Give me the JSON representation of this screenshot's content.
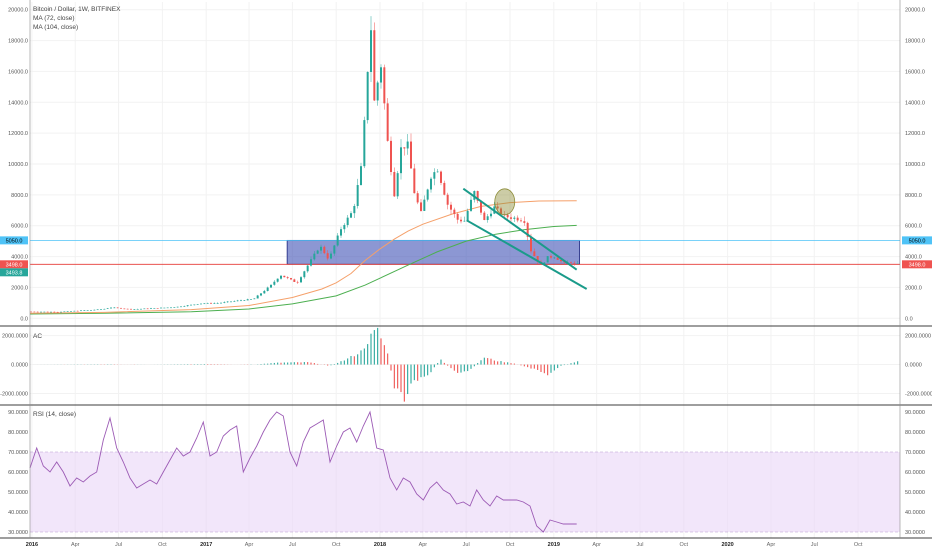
{
  "chart_data": {
    "type": "candlestick",
    "symbol_line": "Bitcoin / Dollar, 1W, BITFINEX",
    "indicators": [
      "MA (72, close)",
      "MA (104, close)"
    ],
    "colors": {
      "up": "#26a69a",
      "down": "#ef5350",
      "ma72": "#f5a06a",
      "ma104": "#4caf50",
      "box": "#3f51b5",
      "support": "#e53935",
      "resistance": "#4fc3f7",
      "channel": "#1a9b8a",
      "rsi": "#9c5bb5",
      "rsi_band": "#e9d6f7",
      "circle": "#8d8d3a"
    },
    "x_axis": {
      "ticks": [
        {
          "label": "2016",
          "date": "2016-01-01",
          "bold": true
        },
        {
          "label": "Apr",
          "date": "2016-04-01"
        },
        {
          "label": "Jul",
          "date": "2016-07-01"
        },
        {
          "label": "Oct",
          "date": "2016-10-01"
        },
        {
          "label": "2017",
          "date": "2017-01-01",
          "bold": true
        },
        {
          "label": "Apr",
          "date": "2017-04-01"
        },
        {
          "label": "Jul",
          "date": "2017-07-01"
        },
        {
          "label": "Oct",
          "date": "2017-10-01"
        },
        {
          "label": "2018",
          "date": "2018-01-01",
          "bold": true
        },
        {
          "label": "Apr",
          "date": "2018-04-01"
        },
        {
          "label": "Jul",
          "date": "2018-07-01"
        },
        {
          "label": "Oct",
          "date": "2018-10-01"
        },
        {
          "label": "2019",
          "date": "2019-01-01",
          "bold": true
        },
        {
          "label": "Apr",
          "date": "2019-04-01"
        },
        {
          "label": "Jul",
          "date": "2019-07-01"
        },
        {
          "label": "Oct",
          "date": "2019-10-01"
        },
        {
          "label": "2020",
          "date": "2020-01-01",
          "bold": true
        },
        {
          "label": "Apr",
          "date": "2020-04-01"
        },
        {
          "label": "Jul",
          "date": "2020-07-01"
        },
        {
          "label": "Oct",
          "date": "2020-10-01"
        }
      ]
    },
    "price_panel": {
      "ylim": [
        -500,
        20500
      ],
      "ticks": [
        "0.0",
        "2000.0",
        "4000.0",
        "6000.0",
        "8000.0",
        "10000.0",
        "12000.0",
        "14000.0",
        "16000.0",
        "18000.0",
        "20000.0"
      ],
      "tick_values": [
        0,
        2000,
        4000,
        6000,
        8000,
        10000,
        12000,
        14000,
        16000,
        18000,
        20000
      ],
      "markers": [
        {
          "label": "5050.0",
          "value": 5050,
          "side": "both",
          "color": "#4fc3f7"
        },
        {
          "label": "3498.0",
          "value": 3498,
          "side": "both",
          "color": "#ef5350"
        },
        {
          "label": "3493.8",
          "value": 3493.8,
          "side": "left",
          "color": "#26a69a"
        }
      ],
      "box": {
        "x0": "2017-06-20",
        "x1": "2019-02-24",
        "y0": 3500,
        "y1": 5050
      },
      "channel_upper": [
        {
          "date": "2018-06-25",
          "value": 8400
        },
        {
          "date": "2019-02-18",
          "value": 3150
        }
      ],
      "channel_lower": [
        {
          "date": "2018-07-02",
          "value": 6350
        },
        {
          "date": "2019-03-11",
          "value": 1900
        }
      ],
      "circle": {
        "date": "2018-09-20",
        "value": 7550
      },
      "ma72_pts": [
        {
          "date": "2015-12-28",
          "value": 320
        },
        {
          "date": "2016-06-01",
          "value": 380
        },
        {
          "date": "2016-12-01",
          "value": 560
        },
        {
          "date": "2017-04-01",
          "value": 830
        },
        {
          "date": "2017-07-01",
          "value": 1350
        },
        {
          "date": "2017-09-01",
          "value": 1900
        },
        {
          "date": "2017-10-01",
          "value": 2300
        },
        {
          "date": "2017-11-01",
          "value": 2900
        },
        {
          "date": "2017-12-01",
          "value": 3750
        },
        {
          "date": "2018-01-01",
          "value": 4500
        },
        {
          "date": "2018-02-01",
          "value": 5150
        },
        {
          "date": "2018-03-01",
          "value": 5650
        },
        {
          "date": "2018-04-01",
          "value": 6100
        },
        {
          "date": "2018-06-01",
          "value": 6750
        },
        {
          "date": "2018-08-01",
          "value": 7250
        },
        {
          "date": "2018-10-01",
          "value": 7500
        },
        {
          "date": "2018-12-01",
          "value": 7600
        },
        {
          "date": "2019-02-18",
          "value": 7620
        }
      ],
      "ma104_pts": [
        {
          "date": "2015-12-28",
          "value": 280
        },
        {
          "date": "2016-06-01",
          "value": 320
        },
        {
          "date": "2016-12-01",
          "value": 420
        },
        {
          "date": "2017-04-01",
          "value": 600
        },
        {
          "date": "2017-07-01",
          "value": 930
        },
        {
          "date": "2017-10-01",
          "value": 1450
        },
        {
          "date": "2017-12-01",
          "value": 2150
        },
        {
          "date": "2018-01-01",
          "value": 2600
        },
        {
          "date": "2018-03-01",
          "value": 3450
        },
        {
          "date": "2018-05-01",
          "value": 4300
        },
        {
          "date": "2018-07-01",
          "value": 5000
        },
        {
          "date": "2018-09-01",
          "value": 5450
        },
        {
          "date": "2018-11-01",
          "value": 5750
        },
        {
          "date": "2019-01-01",
          "value": 5950
        },
        {
          "date": "2019-02-18",
          "value": 6020
        }
      ],
      "price_pts": [
        {
          "date": "2015-12-28",
          "value": 430
        },
        {
          "date": "2016-03-01",
          "value": 415
        },
        {
          "date": "2016-06-01",
          "value": 580
        },
        {
          "date": "2016-06-20",
          "value": 700
        },
        {
          "date": "2016-08-01",
          "value": 580
        },
        {
          "date": "2016-11-01",
          "value": 720
        },
        {
          "date": "2016-12-26",
          "value": 960
        },
        {
          "date": "2017-02-01",
          "value": 990
        },
        {
          "date": "2017-03-01",
          "value": 1100
        },
        {
          "date": "2017-04-15",
          "value": 1250
        },
        {
          "date": "2017-05-20",
          "value": 2100
        },
        {
          "date": "2017-06-10",
          "value": 2800
        },
        {
          "date": "2017-07-15",
          "value": 2300
        },
        {
          "date": "2017-08-10",
          "value": 3600
        },
        {
          "date": "2017-09-01",
          "value": 4700
        },
        {
          "date": "2017-09-20",
          "value": 3800
        },
        {
          "date": "2017-10-15",
          "value": 5800
        },
        {
          "date": "2017-11-10",
          "value": 7000
        },
        {
          "date": "2017-11-28",
          "value": 10000
        },
        {
          "date": "2017-12-10",
          "value": 16000
        },
        {
          "date": "2017-12-17",
          "value": 19000
        },
        {
          "date": "2017-12-24",
          "value": 14000
        },
        {
          "date": "2018-01-07",
          "value": 16500
        },
        {
          "date": "2018-01-21",
          "value": 11500
        },
        {
          "date": "2018-02-04",
          "value": 8000
        },
        {
          "date": "2018-02-18",
          "value": 11000
        },
        {
          "date": "2018-03-04",
          "value": 11300
        },
        {
          "date": "2018-03-18",
          "value": 8200
        },
        {
          "date": "2018-04-01",
          "value": 6800
        },
        {
          "date": "2018-04-22",
          "value": 9200
        },
        {
          "date": "2018-05-06",
          "value": 9700
        },
        {
          "date": "2018-05-27",
          "value": 7400
        },
        {
          "date": "2018-06-17",
          "value": 6400
        },
        {
          "date": "2018-07-01",
          "value": 6300
        },
        {
          "date": "2018-07-22",
          "value": 8200
        },
        {
          "date": "2018-08-12",
          "value": 6300
        },
        {
          "date": "2018-09-02",
          "value": 7200
        },
        {
          "date": "2018-09-23",
          "value": 6600
        },
        {
          "date": "2018-10-14",
          "value": 6500
        },
        {
          "date": "2018-11-04",
          "value": 6350
        },
        {
          "date": "2018-11-18",
          "value": 4400
        },
        {
          "date": "2018-12-09",
          "value": 3400
        },
        {
          "date": "2018-12-23",
          "value": 3950
        },
        {
          "date": "2019-01-06",
          "value": 4000
        },
        {
          "date": "2019-01-27",
          "value": 3550
        },
        {
          "date": "2019-02-10",
          "value": 3650
        },
        {
          "date": "2019-02-18",
          "value": 3498
        }
      ]
    },
    "ac_panel": {
      "title": "AC",
      "ylim": [
        -2800,
        2600
      ],
      "ticks": [
        "2000.0000",
        "0.0000",
        "-2000.0000"
      ],
      "tick_values": [
        2000,
        0,
        -2000
      ],
      "pts": [
        {
          "date": "2015-12-28",
          "value": 0
        },
        {
          "date": "2016-06-15",
          "value": 20
        },
        {
          "date": "2016-08-01",
          "value": -10
        },
        {
          "date": "2017-01-01",
          "value": 40
        },
        {
          "date": "2017-04-01",
          "value": -20
        },
        {
          "date": "2017-06-01",
          "value": 130
        },
        {
          "date": "2017-08-01",
          "value": 160
        },
        {
          "date": "2017-09-15",
          "value": -80
        },
        {
          "date": "2017-10-20",
          "value": 350
        },
        {
          "date": "2017-11-20",
          "value": 900
        },
        {
          "date": "2017-12-10",
          "value": 1900
        },
        {
          "date": "2017-12-24",
          "value": 2400
        },
        {
          "date": "2018-01-14",
          "value": 900
        },
        {
          "date": "2018-01-28",
          "value": -1500
        },
        {
          "date": "2018-02-18",
          "value": -2400
        },
        {
          "date": "2018-03-11",
          "value": -1200
        },
        {
          "date": "2018-04-08",
          "value": -800
        },
        {
          "date": "2018-05-06",
          "value": 350
        },
        {
          "date": "2018-06-10",
          "value": -650
        },
        {
          "date": "2018-07-08",
          "value": -380
        },
        {
          "date": "2018-08-05",
          "value": 500
        },
        {
          "date": "2018-09-02",
          "value": 250
        },
        {
          "date": "2018-10-07",
          "value": 80
        },
        {
          "date": "2018-11-18",
          "value": -300
        },
        {
          "date": "2018-12-16",
          "value": -700
        },
        {
          "date": "2019-01-13",
          "value": -100
        },
        {
          "date": "2019-02-18",
          "value": 200
        }
      ]
    },
    "rsi_panel": {
      "title": "RSI (14, close)",
      "ylim": [
        27,
        93
      ],
      "band": [
        30,
        70
      ],
      "ticks": [
        "90.0000",
        "80.0000",
        "70.0000",
        "60.0000",
        "50.0000",
        "40.0000",
        "30.0000"
      ],
      "tick_values": [
        90,
        80,
        70,
        60,
        50,
        40,
        30
      ],
      "pts": [
        {
          "date": "2015-12-28",
          "value": 62
        },
        {
          "date": "2016-01-11",
          "value": 72
        },
        {
          "date": "2016-01-25",
          "value": 63
        },
        {
          "date": "2016-02-08",
          "value": 60
        },
        {
          "date": "2016-02-22",
          "value": 65
        },
        {
          "date": "2016-03-07",
          "value": 60
        },
        {
          "date": "2016-03-21",
          "value": 53
        },
        {
          "date": "2016-04-04",
          "value": 57
        },
        {
          "date": "2016-04-18",
          "value": 55
        },
        {
          "date": "2016-05-02",
          "value": 58
        },
        {
          "date": "2016-05-16",
          "value": 60
        },
        {
          "date": "2016-05-30",
          "value": 76
        },
        {
          "date": "2016-06-13",
          "value": 87
        },
        {
          "date": "2016-06-27",
          "value": 72
        },
        {
          "date": "2016-07-11",
          "value": 65
        },
        {
          "date": "2016-07-25",
          "value": 57
        },
        {
          "date": "2016-08-08",
          "value": 52
        },
        {
          "date": "2016-08-22",
          "value": 54
        },
        {
          "date": "2016-09-05",
          "value": 56
        },
        {
          "date": "2016-09-19",
          "value": 54
        },
        {
          "date": "2016-10-03",
          "value": 60
        },
        {
          "date": "2016-10-17",
          "value": 66
        },
        {
          "date": "2016-10-31",
          "value": 72
        },
        {
          "date": "2016-11-14",
          "value": 68
        },
        {
          "date": "2016-11-28",
          "value": 70
        },
        {
          "date": "2016-12-12",
          "value": 77
        },
        {
          "date": "2016-12-26",
          "value": 85
        },
        {
          "date": "2017-01-09",
          "value": 68
        },
        {
          "date": "2017-01-23",
          "value": 70
        },
        {
          "date": "2017-02-06",
          "value": 78
        },
        {
          "date": "2017-02-20",
          "value": 81
        },
        {
          "date": "2017-03-06",
          "value": 83
        },
        {
          "date": "2017-03-20",
          "value": 60
        },
        {
          "date": "2017-04-03",
          "value": 67
        },
        {
          "date": "2017-04-17",
          "value": 73
        },
        {
          "date": "2017-05-01",
          "value": 80
        },
        {
          "date": "2017-05-15",
          "value": 86
        },
        {
          "date": "2017-05-29",
          "value": 90
        },
        {
          "date": "2017-06-12",
          "value": 88
        },
        {
          "date": "2017-06-26",
          "value": 70
        },
        {
          "date": "2017-07-10",
          "value": 63
        },
        {
          "date": "2017-07-24",
          "value": 75
        },
        {
          "date": "2017-08-07",
          "value": 82
        },
        {
          "date": "2017-08-21",
          "value": 84
        },
        {
          "date": "2017-09-04",
          "value": 86
        },
        {
          "date": "2017-09-18",
          "value": 65
        },
        {
          "date": "2017-10-02",
          "value": 73
        },
        {
          "date": "2017-10-16",
          "value": 80
        },
        {
          "date": "2017-10-30",
          "value": 82
        },
        {
          "date": "2017-11-13",
          "value": 75
        },
        {
          "date": "2017-11-27",
          "value": 83
        },
        {
          "date": "2017-12-11",
          "value": 90
        },
        {
          "date": "2017-12-25",
          "value": 72
        },
        {
          "date": "2018-01-08",
          "value": 71
        },
        {
          "date": "2018-01-22",
          "value": 57
        },
        {
          "date": "2018-02-05",
          "value": 51
        },
        {
          "date": "2018-02-19",
          "value": 57
        },
        {
          "date": "2018-03-05",
          "value": 55
        },
        {
          "date": "2018-03-19",
          "value": 49
        },
        {
          "date": "2018-04-02",
          "value": 46
        },
        {
          "date": "2018-04-16",
          "value": 52
        },
        {
          "date": "2018-04-30",
          "value": 55
        },
        {
          "date": "2018-05-14",
          "value": 51
        },
        {
          "date": "2018-05-28",
          "value": 49
        },
        {
          "date": "2018-06-11",
          "value": 44
        },
        {
          "date": "2018-06-25",
          "value": 45
        },
        {
          "date": "2018-07-09",
          "value": 43
        },
        {
          "date": "2018-07-23",
          "value": 51
        },
        {
          "date": "2018-08-06",
          "value": 46
        },
        {
          "date": "2018-08-20",
          "value": 43
        },
        {
          "date": "2018-09-03",
          "value": 48
        },
        {
          "date": "2018-09-17",
          "value": 46
        },
        {
          "date": "2018-10-01",
          "value": 46
        },
        {
          "date": "2018-10-15",
          "value": 46
        },
        {
          "date": "2018-10-29",
          "value": 45
        },
        {
          "date": "2018-11-12",
          "value": 43
        },
        {
          "date": "2018-11-26",
          "value": 33
        },
        {
          "date": "2018-12-10",
          "value": 30
        },
        {
          "date": "2018-12-24",
          "value": 36
        },
        {
          "date": "2019-01-07",
          "value": 35
        },
        {
          "date": "2019-01-21",
          "value": 34
        },
        {
          "date": "2019-02-04",
          "value": 34
        },
        {
          "date": "2019-02-18",
          "value": 34
        }
      ]
    }
  }
}
